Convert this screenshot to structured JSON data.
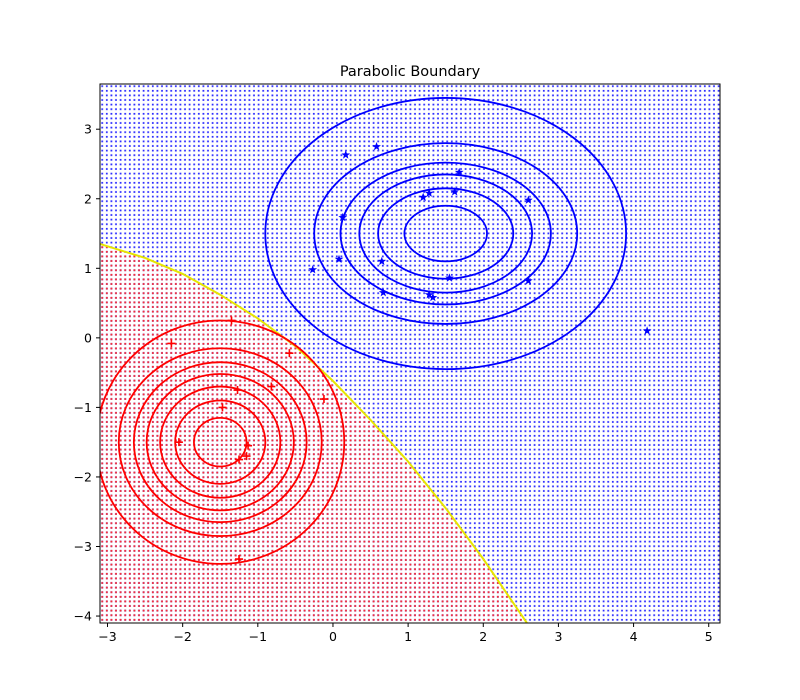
{
  "chart_data": {
    "type": "scatter",
    "title": "Parabolic Boundary",
    "xlabel": "",
    "ylabel": "",
    "xlim": [
      -3.1,
      5.15
    ],
    "ylim": [
      -4.1,
      3.65
    ],
    "x_ticks": [
      -3,
      -2,
      -1,
      0,
      1,
      2,
      3,
      4,
      5
    ],
    "y_ticks": [
      -4,
      -3,
      -2,
      -1,
      0,
      1,
      2,
      3
    ],
    "x_tick_labels": [
      "−3",
      "−2",
      "−1",
      "0",
      "1",
      "2",
      "3",
      "4",
      "5"
    ],
    "y_tick_labels": [
      "−4",
      "−3",
      "−2",
      "−1",
      "0",
      "1",
      "2",
      "3"
    ],
    "grid": false,
    "legend": "none",
    "colors": {
      "class_a": "#ff0000",
      "class_b": "#0000ff",
      "boundary": "#e6e600"
    },
    "series": [
      {
        "marker": "plus",
        "color": "#ff0000",
        "points": [
          [
            -1.35,
            0.25
          ],
          [
            -2.15,
            -0.08
          ],
          [
            -0.58,
            -0.22
          ],
          [
            -1.27,
            -0.75
          ],
          [
            -0.82,
            -0.7
          ],
          [
            -0.12,
            -0.88
          ],
          [
            -1.47,
            -1.0
          ],
          [
            -2.05,
            -1.5
          ],
          [
            -1.13,
            -1.55
          ],
          [
            -1.25,
            -1.75
          ],
          [
            -1.15,
            -1.7
          ],
          [
            -1.25,
            -3.18
          ]
        ]
      },
      {
        "marker": "star",
        "color": "#0000ff",
        "points": [
          [
            0.17,
            2.63
          ],
          [
            0.58,
            2.75
          ],
          [
            1.68,
            2.38
          ],
          [
            1.62,
            2.1
          ],
          [
            1.28,
            2.08
          ],
          [
            1.2,
            2.02
          ],
          [
            2.6,
            1.98
          ],
          [
            0.13,
            1.73
          ],
          [
            0.08,
            1.13
          ],
          [
            0.65,
            1.1
          ],
          [
            -0.27,
            0.98
          ],
          [
            1.55,
            0.86
          ],
          [
            2.6,
            0.82
          ],
          [
            0.67,
            0.65
          ],
          [
            1.28,
            0.62
          ],
          [
            1.33,
            0.58
          ],
          [
            4.18,
            0.1
          ]
        ]
      }
    ],
    "contours": [
      {
        "center": [
          -1.5,
          -1.5
        ],
        "color": "#ff0000",
        "radii_x": [
          0.35,
          0.6,
          0.8,
          0.98,
          1.15,
          1.35,
          1.65
        ],
        "radii_y": [
          0.35,
          0.6,
          0.8,
          0.98,
          1.15,
          1.35,
          1.75
        ]
      },
      {
        "center": [
          1.5,
          1.5
        ],
        "color": "#0000ff",
        "radii_x": [
          0.55,
          0.9,
          1.15,
          1.4,
          1.75,
          2.4
        ],
        "radii_y": [
          0.4,
          0.65,
          0.85,
          1.02,
          1.3,
          1.95
        ]
      }
    ],
    "boundary": [
      [
        -3.1,
        1.35
      ],
      [
        -2.5,
        1.15
      ],
      [
        -2.0,
        0.92
      ],
      [
        -1.5,
        0.62
      ],
      [
        -1.0,
        0.28
      ],
      [
        -0.5,
        -0.12
      ],
      [
        0.0,
        -0.62
      ],
      [
        0.5,
        -1.18
      ],
      [
        1.0,
        -1.78
      ],
      [
        1.5,
        -2.45
      ],
      [
        2.0,
        -3.18
      ],
      [
        2.58,
        -4.1
      ]
    ]
  }
}
